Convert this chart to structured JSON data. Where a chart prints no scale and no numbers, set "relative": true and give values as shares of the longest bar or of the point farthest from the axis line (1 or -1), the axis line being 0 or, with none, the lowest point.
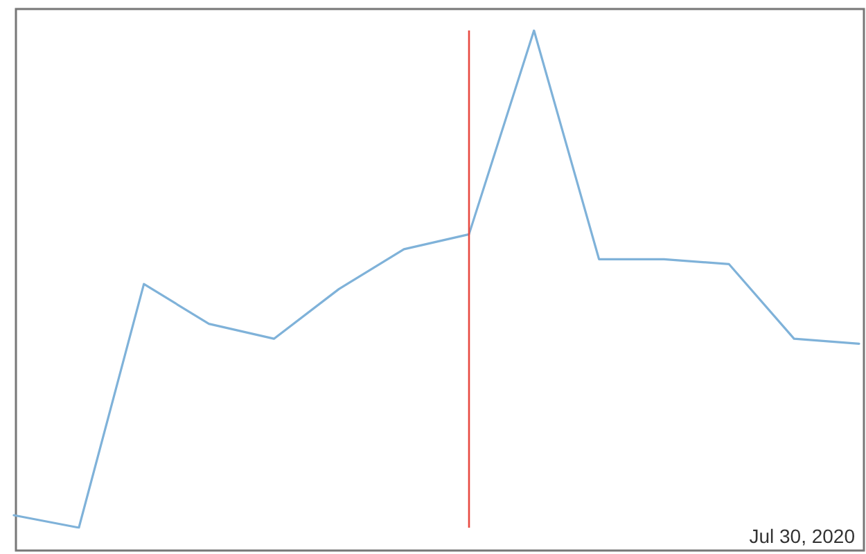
{
  "chart_data": {
    "type": "line",
    "relative": true,
    "categories": [
      null,
      null,
      null,
      null,
      null,
      null,
      null,
      null,
      null,
      null,
      null,
      null,
      null,
      null
    ],
    "series": [
      {
        "color": "#7fb2d9",
        "values": [
          0.025,
          0,
          0.49,
          0.41,
          0.38,
          0.48,
          0.56,
          0.59,
          1,
          0.54,
          0.54,
          0.53,
          0.38,
          0.37
        ]
      }
    ],
    "annotations": [
      "Jul 30, 2020"
    ],
    "grid": false,
    "marker": "none",
    "line_style": "solid"
  }
}
